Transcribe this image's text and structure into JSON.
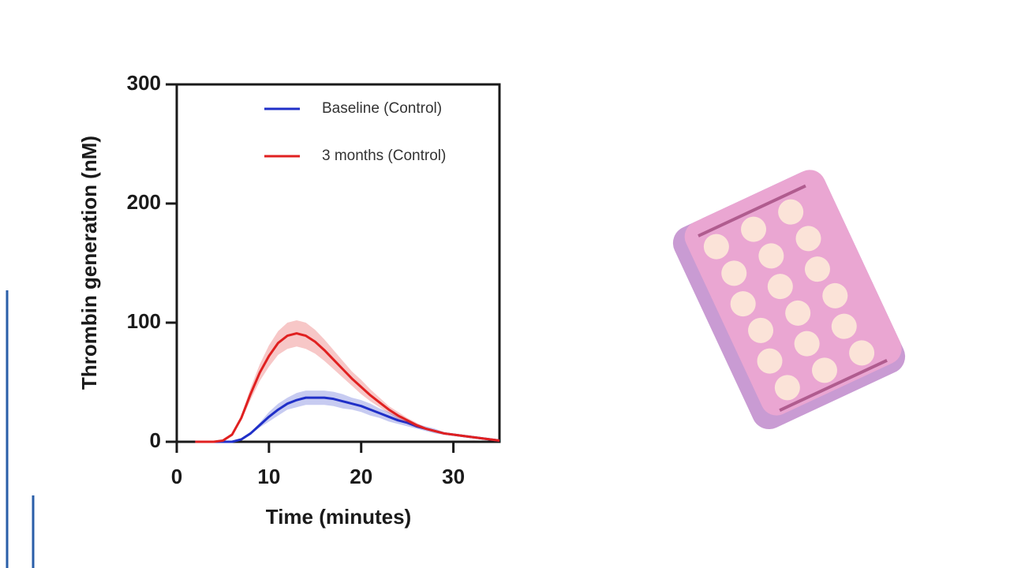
{
  "chart_data": {
    "type": "line",
    "xlabel": "Time (minutes)",
    "ylabel": "Thrombin generation (nM)",
    "x": [
      2,
      3,
      4,
      5,
      6,
      7,
      8,
      9,
      10,
      11,
      12,
      13,
      14,
      15,
      16,
      17,
      18,
      19,
      20,
      21,
      22,
      23,
      24,
      25,
      26,
      27,
      28,
      29,
      30,
      31,
      32,
      33,
      34,
      35
    ],
    "series": [
      {
        "name": "Baseline (Control)",
        "color": "#1f2fc8",
        "values": [
          0,
          0,
          0,
          0,
          0,
          2,
          7,
          14,
          21,
          27,
          32,
          35,
          37,
          37,
          37,
          36,
          34,
          32,
          30,
          27,
          24,
          21,
          18,
          16,
          13,
          11,
          9,
          7,
          6,
          5,
          4,
          3,
          2,
          1
        ],
        "error": [
          0,
          0,
          0,
          0,
          0,
          0,
          1,
          2,
          4,
          5,
          5,
          6,
          6,
          6,
          6,
          6,
          6,
          5,
          5,
          5,
          4,
          4,
          3,
          3,
          2,
          2,
          2,
          1,
          1,
          1,
          1,
          1,
          0,
          0
        ]
      },
      {
        "name": "3 months (Control)",
        "color": "#e02020",
        "values": [
          0,
          0,
          0,
          1,
          6,
          20,
          40,
          58,
          72,
          83,
          89,
          91,
          89,
          84,
          77,
          69,
          61,
          53,
          46,
          39,
          33,
          27,
          22,
          18,
          14,
          11,
          9,
          7,
          6,
          5,
          4,
          3,
          2,
          1
        ],
        "error": [
          0,
          0,
          0,
          0,
          1,
          2,
          5,
          7,
          9,
          10,
          11,
          11,
          11,
          10,
          9,
          8,
          7,
          6,
          6,
          5,
          4,
          3,
          3,
          2,
          2,
          1,
          1,
          1,
          1,
          1,
          0,
          0,
          0,
          0
        ]
      }
    ],
    "xlim": [
      0,
      35
    ],
    "xticks": [
      0,
      10,
      20,
      30
    ],
    "ylim": [
      0,
      300
    ],
    "yticks": [
      0,
      100,
      200,
      300
    ]
  }
}
